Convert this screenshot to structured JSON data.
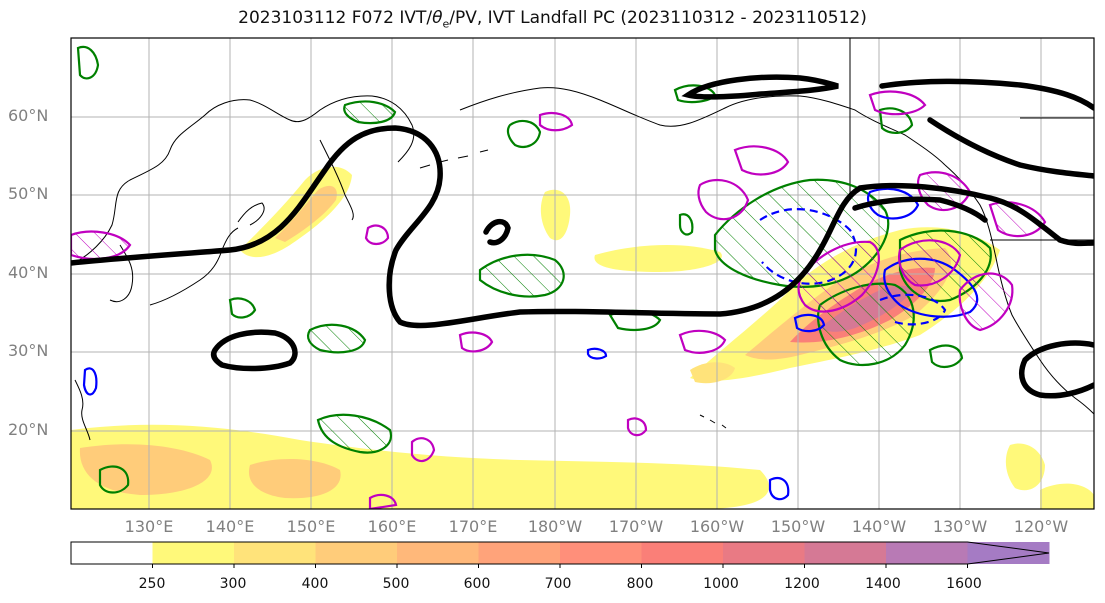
{
  "title": {
    "text": "2023103112 F072 IVT/",
    "theta": "θ",
    "sub": "e",
    "rest": "/PV, IVT Landfall PC (2023110312 - 2023110512)"
  },
  "lat_labels": [
    "60°N",
    "50°N",
    "40°N",
    "30°N",
    "20°N"
  ],
  "lon_labels": [
    "130°E",
    "140°E",
    "150°E",
    "160°E",
    "170°E",
    "180°W",
    "170°W",
    "160°W",
    "150°W",
    "140°W",
    "130°W",
    "120°W"
  ],
  "colorbar": {
    "ticks": [
      "250",
      "300",
      "400",
      "500",
      "600",
      "700",
      "800",
      "1000",
      "1200",
      "1400",
      "1600"
    ],
    "colors": [
      "#ffffff",
      "#fff97a",
      "#ffe37a",
      "#ffcc7a",
      "#ffb87a",
      "#ffa37a",
      "#ff8f7a",
      "#fa7f78",
      "#e97a84",
      "#d57995",
      "#b87ab5",
      "#a57bc4"
    ]
  },
  "contour_colors": {
    "pv": "#000000",
    "theta_e_warm": "#008000",
    "theta_e_cold": "#0000ff",
    "ivt_pc": "#c000c0"
  }
}
